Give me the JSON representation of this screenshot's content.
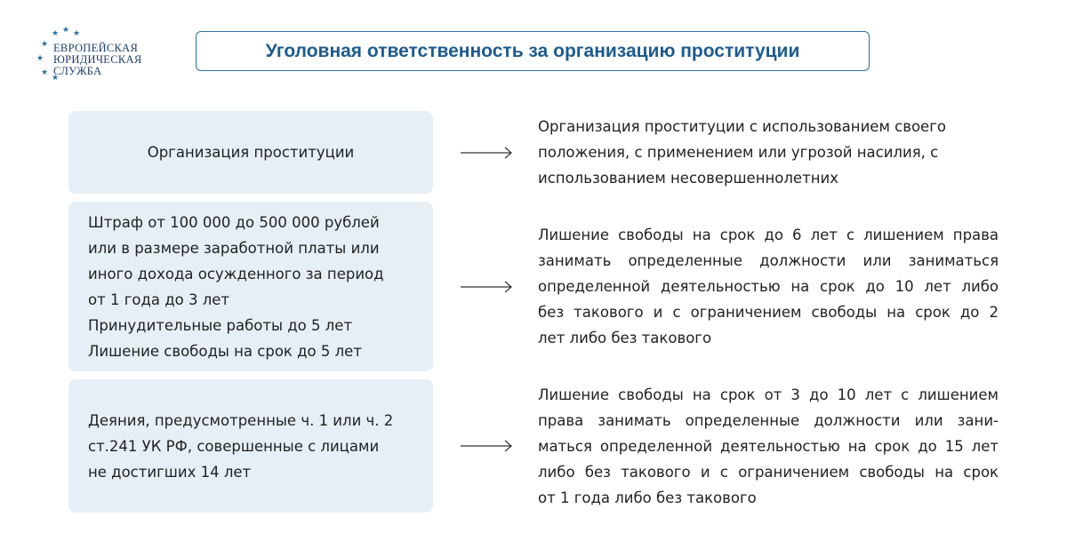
{
  "logo": {
    "lines": [
      "ЕВРОПЕЙСКАЯ",
      "ЮРИДИЧЕСКАЯ",
      "СЛУЖБА"
    ]
  },
  "title": "Уголовная ответственность за организацию проституции",
  "rows": [
    {
      "left": [
        "Организация проституции"
      ],
      "right": [
        "Организация проституции с использованием своего",
        "положения, с применением или угрозой насилия, с",
        "использованием несовершеннолетних"
      ]
    },
    {
      "left": [
        "Штраф от 100 000 до 500 000 рублей",
        "или в размере заработной платы или",
        "иного дохода осужденного за период",
        "от 1 года до 3 лет",
        "Принудительные работы до 5 лет",
        "Лишение свободы на срок до 5 лет"
      ],
      "right": [
        "Лишение свободы на срок до 6 лет с лишением права",
        "занимать определенные должности или заниматься",
        "определенной деятельностью на срок до 10 лет либо",
        "без такового и с ограничением свободы на срок до 2",
        "лет либо без такового"
      ]
    },
    {
      "left": [
        "Деяния, предусмотренные ч. 1 или ч. 2",
        "ст.241 УК РФ, совершенные с лицами",
        "не достигших 14 лет"
      ],
      "right": [
        "Лишение свободы на срок от 3 до 10 лет с лишением",
        "права занимать определенные должности или зани-",
        "маться определенной деятельностью на срок до 15 лет",
        "либо без такового и с ограничением свободы на срок",
        "от 1 года либо без такового"
      ]
    }
  ]
}
